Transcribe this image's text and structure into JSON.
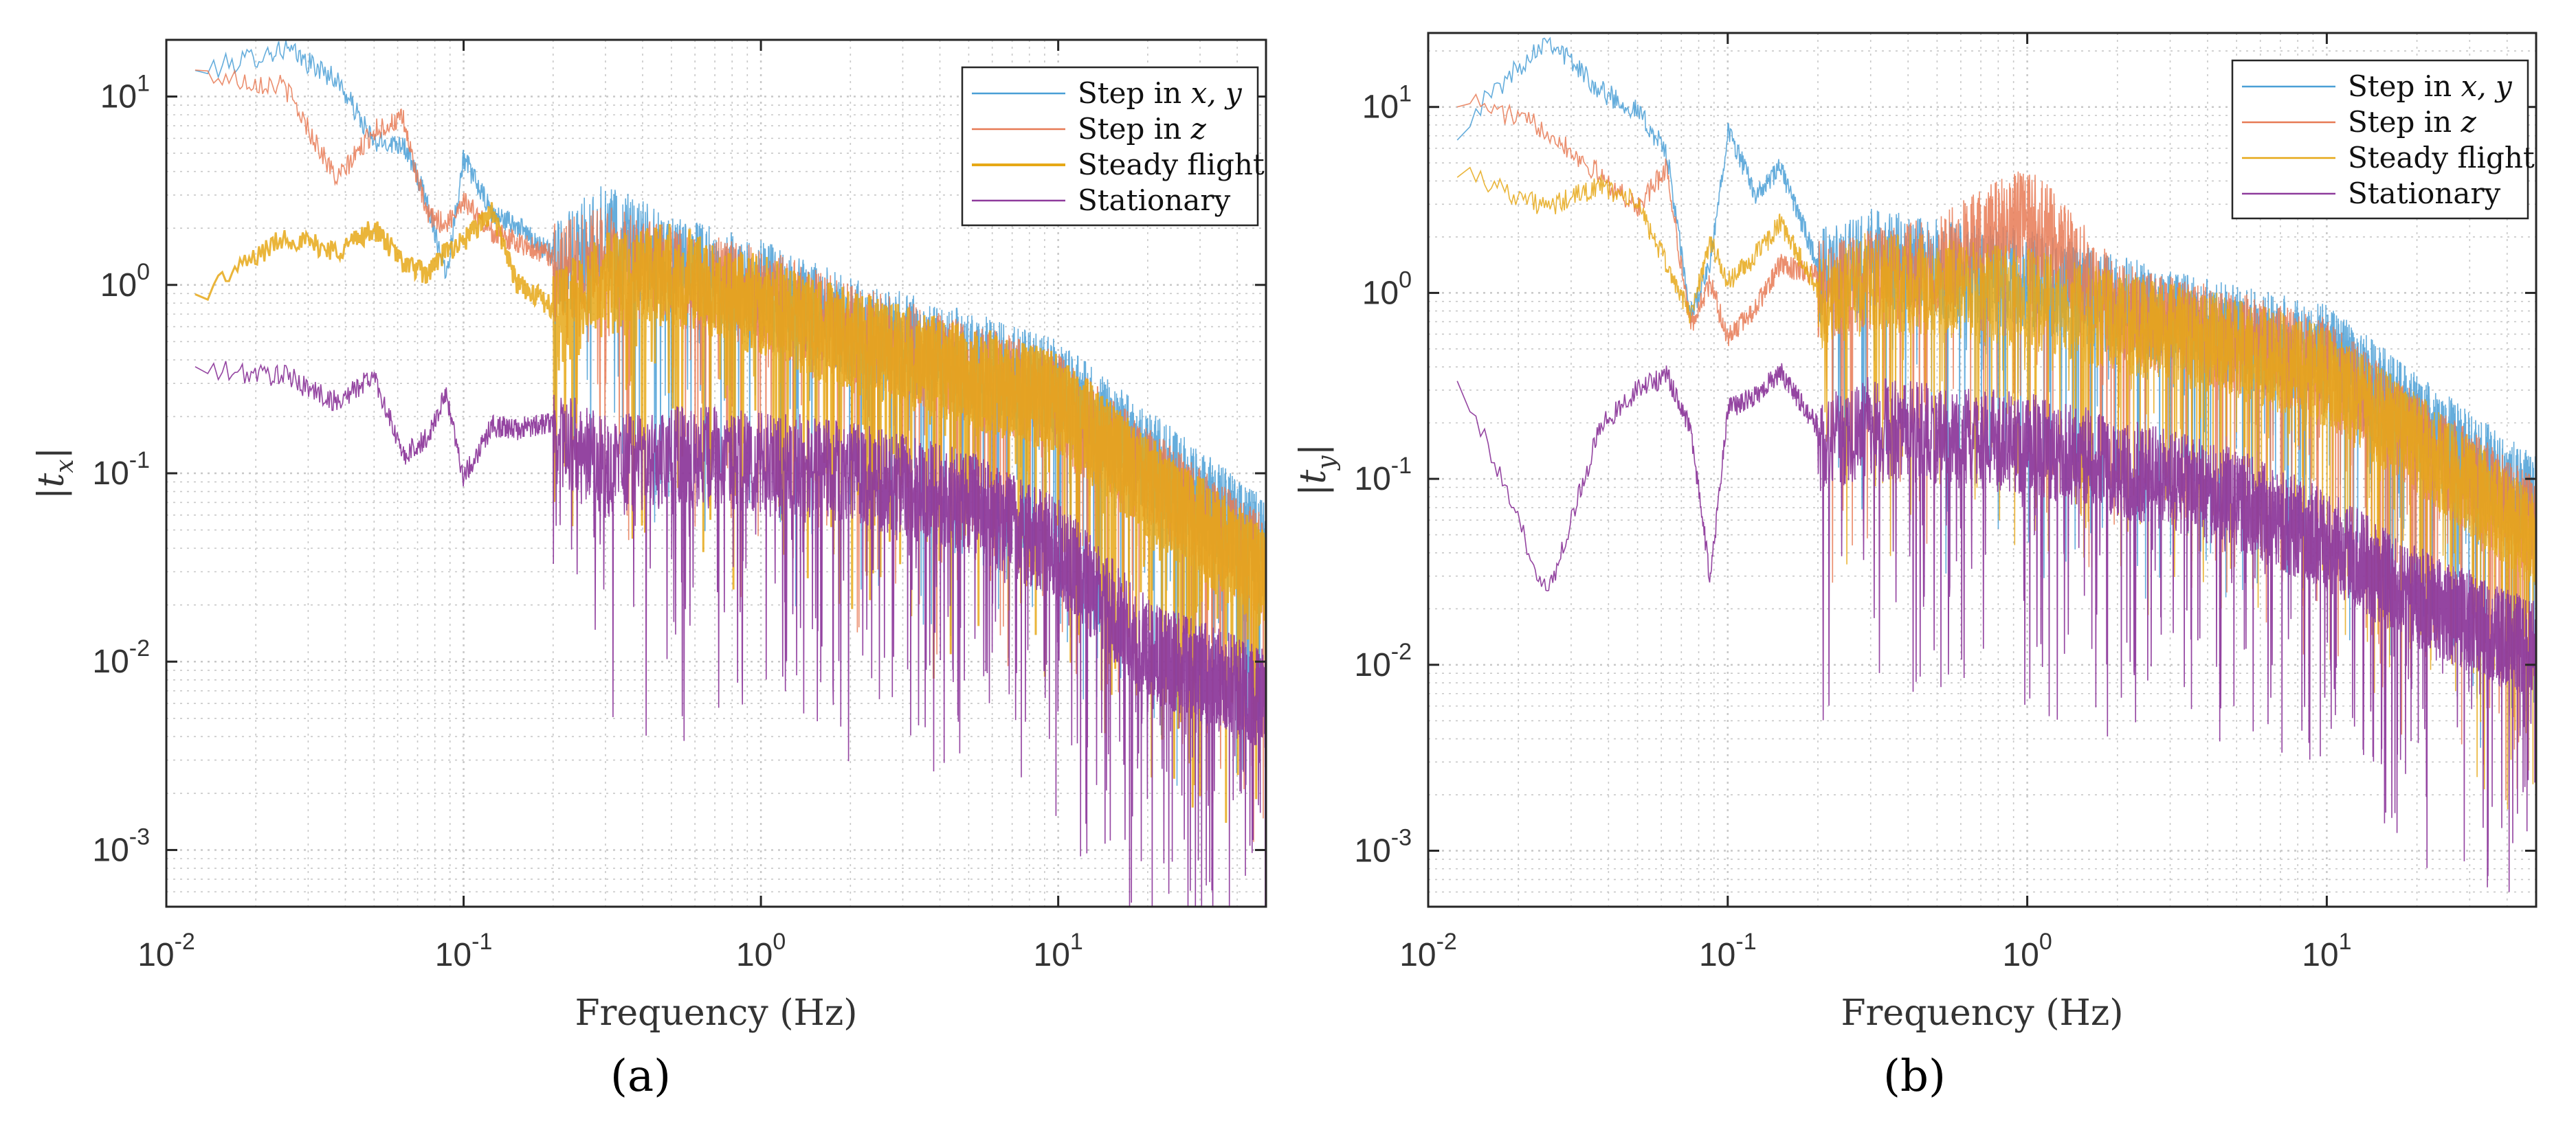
{
  "figure": {
    "panel_labels": [
      "(a)",
      "(b)"
    ]
  },
  "colors": {
    "step_xy": "#4a9fd6",
    "step_z": "#e77a55",
    "steady": "#e6a817",
    "stationary": "#8e3b9c",
    "grid": "#c8c8c8",
    "axis": "#262626"
  },
  "chart_data": [
    {
      "type": "line",
      "x_scale": "log",
      "y_scale": "log",
      "xlim": [
        0.01,
        50
      ],
      "ylim": [
        0.0005,
        20
      ],
      "xlabel": "Frequency (Hz)",
      "ylabel": "|t",
      "ylabel_sub": "x",
      "ylabel_end": "|",
      "x_ticks": [
        {
          "base": "10",
          "exp": "-2"
        },
        {
          "base": "10",
          "exp": "-1"
        },
        {
          "base": "10",
          "exp": "0"
        },
        {
          "base": "10",
          "exp": "1"
        }
      ],
      "y_ticks": [
        {
          "base": "10",
          "exp": "-3"
        },
        {
          "base": "10",
          "exp": "-2"
        },
        {
          "base": "10",
          "exp": "-1"
        },
        {
          "base": "10",
          "exp": "0"
        },
        {
          "base": "10",
          "exp": "1"
        }
      ],
      "grid": true,
      "legend_position": "top-right",
      "series": [
        {
          "name": "Step in x, y",
          "color_key": "step_xy",
          "x": [
            0.0125,
            0.025,
            0.0375,
            0.05,
            0.0625,
            0.075,
            0.0875,
            0.1,
            0.125,
            0.15,
            0.2,
            0.3,
            0.5,
            1,
            2,
            5,
            10,
            20,
            50
          ],
          "y": [
            14,
            19,
            13,
            6,
            6,
            3,
            1.2,
            5,
            2.5,
            2.2,
            1.5,
            2.4,
            1.6,
            1.2,
            0.75,
            0.5,
            0.35,
            0.15,
            0.05
          ]
        },
        {
          "name": "Step in z",
          "color_key": "step_z",
          "x": [
            0.0125,
            0.025,
            0.0375,
            0.05,
            0.0625,
            0.075,
            0.0875,
            0.1,
            0.125,
            0.15,
            0.2,
            0.3,
            0.5,
            1,
            2,
            5,
            10,
            20,
            50
          ],
          "y": [
            14,
            12,
            3.8,
            7,
            8,
            2.5,
            2.2,
            3,
            2,
            1.8,
            1.5,
            1.8,
            1.4,
            1.1,
            0.7,
            0.45,
            0.3,
            0.12,
            0.04
          ]
        },
        {
          "name": "Steady flight",
          "color_key": "steady",
          "x": [
            0.0125,
            0.025,
            0.0375,
            0.05,
            0.0625,
            0.075,
            0.0875,
            0.1,
            0.125,
            0.15,
            0.2,
            0.3,
            0.5,
            1,
            2,
            5,
            10,
            20,
            50
          ],
          "y": [
            0.9,
            1.9,
            1.6,
            2.1,
            1.4,
            1.2,
            1.6,
            1.8,
            2.6,
            1.1,
            0.8,
            1.3,
            1.5,
            1.0,
            0.65,
            0.42,
            0.3,
            0.11,
            0.035
          ]
        },
        {
          "name": "Stationary",
          "color_key": "stationary",
          "x": [
            0.0125,
            0.025,
            0.0375,
            0.05,
            0.0625,
            0.075,
            0.0875,
            0.1,
            0.125,
            0.15,
            0.2,
            0.3,
            0.5,
            1,
            2,
            5,
            10,
            20,
            50
          ],
          "y": [
            0.37,
            0.35,
            0.25,
            0.35,
            0.13,
            0.16,
            0.28,
            0.1,
            0.19,
            0.18,
            0.2,
            0.14,
            0.16,
            0.15,
            0.13,
            0.09,
            0.05,
            0.015,
            0.008
          ]
        }
      ],
      "legend": [
        {
          "pre": "Step in ",
          "math": "x, y",
          "color_key": "step_xy"
        },
        {
          "pre": "Step in ",
          "math": "z",
          "color_key": "step_z"
        },
        {
          "pre": "Steady flight",
          "math": "",
          "color_key": "steady"
        },
        {
          "pre": "Stationary",
          "math": "",
          "color_key": "stationary"
        }
      ]
    },
    {
      "type": "line",
      "x_scale": "log",
      "y_scale": "log",
      "xlim": [
        0.01,
        50
      ],
      "ylim": [
        0.0005,
        25
      ],
      "xlabel": "Frequency (Hz)",
      "ylabel": "|t",
      "ylabel_sub": "y",
      "ylabel_end": "|",
      "x_ticks": [
        {
          "base": "10",
          "exp": "-2"
        },
        {
          "base": "10",
          "exp": "-1"
        },
        {
          "base": "10",
          "exp": "0"
        },
        {
          "base": "10",
          "exp": "1"
        }
      ],
      "y_ticks": [
        {
          "base": "10",
          "exp": "-3"
        },
        {
          "base": "10",
          "exp": "-2"
        },
        {
          "base": "10",
          "exp": "-1"
        },
        {
          "base": "10",
          "exp": "0"
        },
        {
          "base": "10",
          "exp": "1"
        }
      ],
      "grid": true,
      "legend_position": "top-right",
      "series": [
        {
          "name": "Step in x, y",
          "color_key": "step_xy",
          "x": [
            0.0125,
            0.025,
            0.0375,
            0.05,
            0.0625,
            0.075,
            0.0875,
            0.1,
            0.125,
            0.15,
            0.2,
            0.3,
            0.5,
            1,
            2,
            5,
            10,
            20,
            50
          ],
          "y": [
            8,
            25,
            13,
            10,
            6,
            0.8,
            1.5,
            8,
            3.5,
            5,
            1.5,
            2,
            1.7,
            1.5,
            1.1,
            0.75,
            0.6,
            0.25,
            0.09
          ]
        },
        {
          "name": "Step in z",
          "color_key": "step_z",
          "x": [
            0.0125,
            0.025,
            0.0375,
            0.05,
            0.0625,
            0.075,
            0.0875,
            0.1,
            0.125,
            0.15,
            0.2,
            0.3,
            0.5,
            1,
            2,
            5,
            10,
            20,
            50
          ],
          "y": [
            12,
            8,
            4.5,
            3,
            5,
            0.7,
            1.2,
            0.6,
            0.9,
            1.5,
            1.3,
            1.5,
            1.8,
            3.5,
            1.0,
            0.7,
            0.5,
            0.2,
            0.07
          ]
        },
        {
          "name": "Steady flight",
          "color_key": "steady",
          "x": [
            0.0125,
            0.025,
            0.0375,
            0.05,
            0.0625,
            0.075,
            0.0875,
            0.1,
            0.125,
            0.15,
            0.2,
            0.3,
            0.5,
            1,
            2,
            5,
            10,
            20,
            50
          ],
          "y": [
            5,
            3,
            4,
            3.2,
            1.5,
            0.8,
            2,
            1.2,
            1.7,
            2.5,
            1.1,
            1.5,
            1.4,
            1.2,
            0.9,
            0.65,
            0.45,
            0.2,
            0.06
          ]
        },
        {
          "name": "Stationary",
          "color_key": "stationary",
          "x": [
            0.0125,
            0.025,
            0.0375,
            0.05,
            0.0625,
            0.075,
            0.0875,
            0.1,
            0.125,
            0.15,
            0.2,
            0.3,
            0.5,
            1,
            2,
            5,
            10,
            20,
            50
          ],
          "y": [
            0.4,
            0.025,
            0.2,
            0.32,
            0.38,
            0.2,
            0.03,
            0.25,
            0.3,
            0.4,
            0.2,
            0.25,
            0.22,
            0.2,
            0.15,
            0.1,
            0.06,
            0.03,
            0.015
          ]
        }
      ],
      "legend": [
        {
          "pre": "Step in ",
          "math": "x, y",
          "color_key": "step_xy"
        },
        {
          "pre": "Step in ",
          "math": "z",
          "color_key": "step_z"
        },
        {
          "pre": "Steady flight",
          "math": "",
          "color_key": "steady"
        },
        {
          "pre": "Stationary",
          "math": "",
          "color_key": "stationary"
        }
      ]
    }
  ]
}
